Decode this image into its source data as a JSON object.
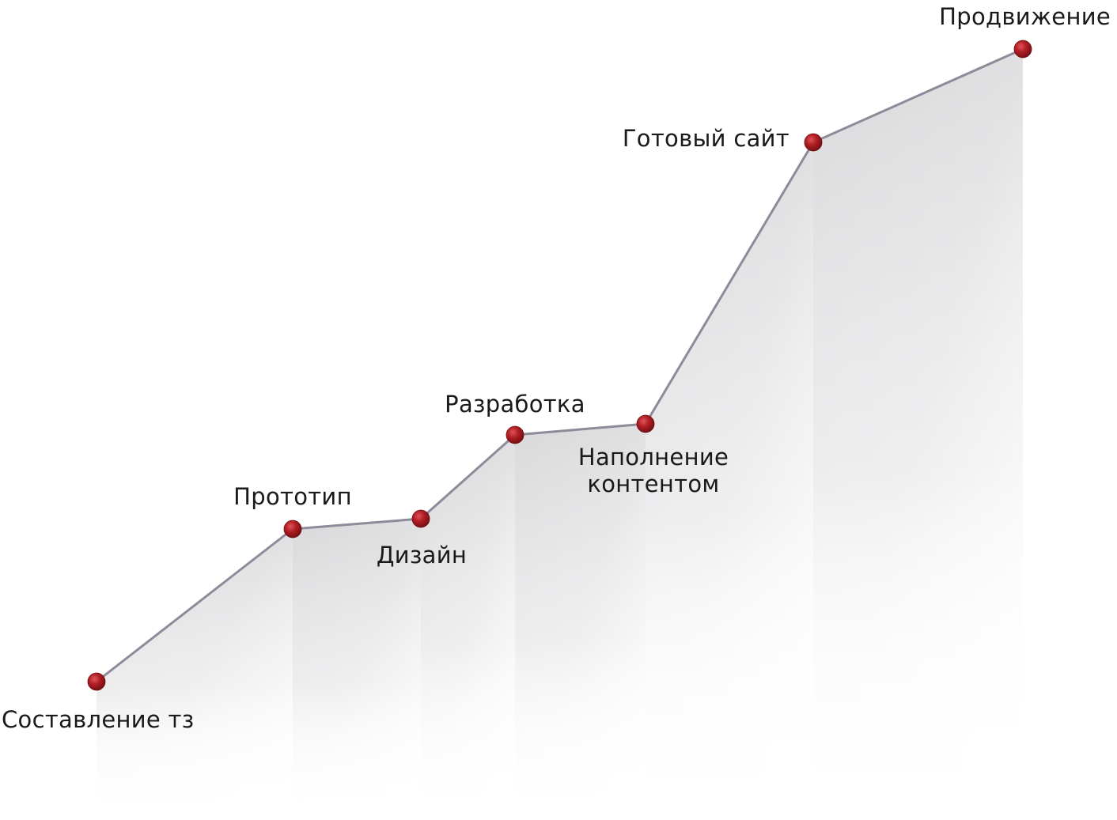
{
  "colors": {
    "line": "#8f8a9a",
    "dot": "#b01e24",
    "dot_dark": "#6e0e12",
    "fill": "#dcdcdc",
    "text": "#1a1a1a"
  },
  "stages": [
    {
      "id": "spec",
      "lines": [
        "Составление тз"
      ]
    },
    {
      "id": "prototype",
      "lines": [
        "Прототип"
      ]
    },
    {
      "id": "design",
      "lines": [
        "Дизайн"
      ]
    },
    {
      "id": "development",
      "lines": [
        "Разработка"
      ]
    },
    {
      "id": "content",
      "lines": [
        "Наполнение",
        "контентом"
      ]
    },
    {
      "id": "site",
      "lines": [
        "Готовый сайт"
      ]
    },
    {
      "id": "promotion",
      "lines": [
        "Продвижение"
      ]
    }
  ]
}
